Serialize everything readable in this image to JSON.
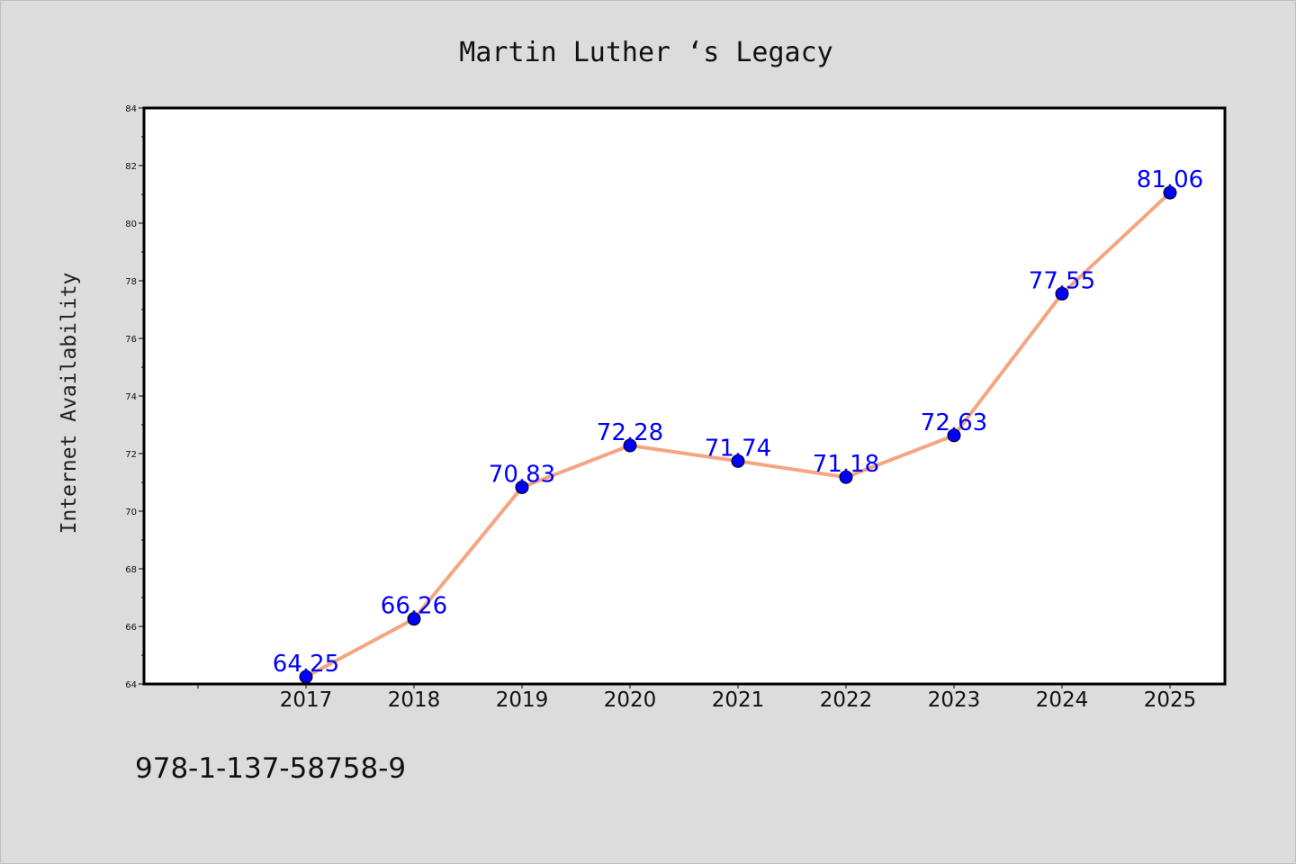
{
  "chart_data": {
    "type": "line",
    "title": "Martin Luther ‘s Legacy",
    "xlabel": "",
    "ylabel": "Internet Availability",
    "categories": [
      "2017",
      "2018",
      "2019",
      "2020",
      "2021",
      "2022",
      "2023",
      "2024",
      "2025"
    ],
    "series": [
      {
        "values": [
          64.25,
          66.26,
          70.83,
          72.28,
          71.74,
          71.18,
          72.63,
          77.55,
          81.06
        ],
        "line_color": "#f4a582",
        "marker_color": "#0000ff"
      }
    ],
    "data_labels": [
      "64.25",
      "66.26",
      "70.83",
      "72.28",
      "71.74",
      "71.18",
      "72.63",
      "77.55",
      "81.06"
    ],
    "ylim": [
      64,
      84
    ],
    "yticks": [
      64,
      66,
      68,
      70,
      72,
      74,
      76,
      78,
      80,
      82,
      84
    ],
    "grid": false,
    "legend": "none"
  },
  "footer": {
    "isbn": "978-1-137-58758-9"
  },
  "colors": {
    "background": "#dcdcdc",
    "plot_background": "#ffffff",
    "data_label": "#0000ff"
  }
}
